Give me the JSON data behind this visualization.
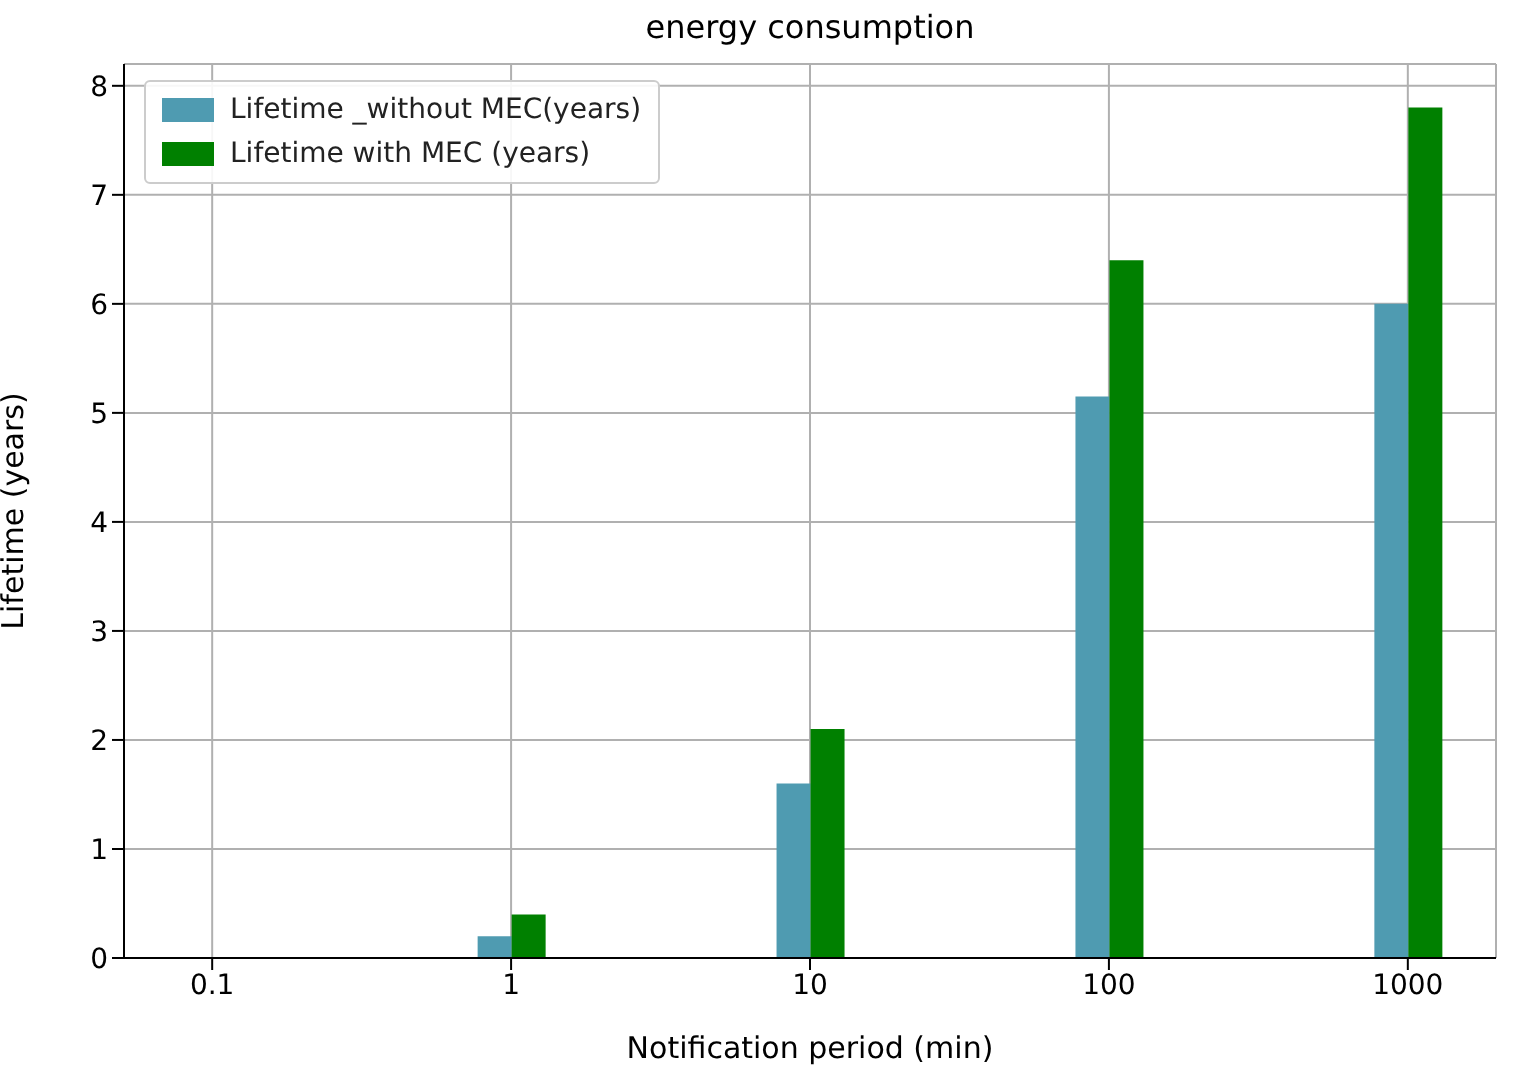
{
  "chart_data": {
    "type": "bar",
    "title": "energy consumption",
    "xlabel": "Notification period (min)",
    "ylabel": "Lifetime (years)",
    "categories": [
      "0.1",
      "1",
      "10",
      "100",
      "1000"
    ],
    "series": [
      {
        "name": "Lifetime _without MEC(years)",
        "color": "#4f9bb1",
        "values": [
          0,
          0.2,
          1.6,
          5.15,
          6.0
        ]
      },
      {
        "name": "Lifetime with MEC (years)",
        "color": "#008000",
        "values": [
          0,
          0.4,
          2.1,
          6.4,
          7.8
        ]
      }
    ],
    "ylim": [
      0,
      8.2
    ],
    "yticks": [
      0,
      1,
      2,
      3,
      4,
      5,
      6,
      7,
      8
    ],
    "grid": true,
    "legend": "top left"
  }
}
